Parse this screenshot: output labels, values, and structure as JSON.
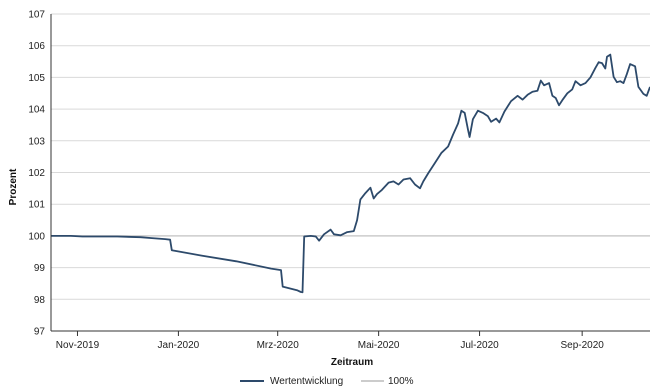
{
  "chart_data": {
    "type": "line",
    "xlabel": "Zeitraum",
    "ylabel": "Prozent",
    "ylim": [
      97,
      107
    ],
    "yticks": [
      97,
      98,
      99,
      100,
      101,
      102,
      103,
      104,
      105,
      106,
      107
    ],
    "xlim": [
      "2019-10-16",
      "2020-10-12"
    ],
    "xticks": [
      {
        "date": "2019-11-01",
        "label": "Nov-2019"
      },
      {
        "date": "2020-01-01",
        "label": "Jan-2020"
      },
      {
        "date": "2020-03-01",
        "label": "Mrz-2020"
      },
      {
        "date": "2020-05-01",
        "label": "Mai-2020"
      },
      {
        "date": "2020-07-01",
        "label": "Jul-2020"
      },
      {
        "date": "2020-09-01",
        "label": "Sep-2020"
      }
    ],
    "grid": true,
    "legend": "bottom",
    "series": [
      {
        "name": "Wertentwicklung",
        "color": "#2d4a6b",
        "points": [
          [
            "2019-10-16",
            100.0
          ],
          [
            "2019-10-28",
            100.0
          ],
          [
            "2019-11-04",
            99.98
          ],
          [
            "2019-11-25",
            99.98
          ],
          [
            "2019-12-09",
            99.96
          ],
          [
            "2019-12-16",
            99.93
          ],
          [
            "2019-12-24",
            99.9
          ],
          [
            "2019-12-27",
            99.88
          ],
          [
            "2019-12-28",
            99.55
          ],
          [
            "2020-01-15",
            99.38
          ],
          [
            "2020-02-05",
            99.2
          ],
          [
            "2020-02-26",
            98.97
          ],
          [
            "2020-03-03",
            98.92
          ],
          [
            "2020-03-04",
            98.4
          ],
          [
            "2020-03-13",
            98.28
          ],
          [
            "2020-03-15",
            98.23
          ],
          [
            "2020-03-16",
            98.22
          ],
          [
            "2020-03-17",
            99.98
          ],
          [
            "2020-03-21",
            100.0
          ],
          [
            "2020-03-24",
            99.98
          ],
          [
            "2020-03-26",
            99.85
          ],
          [
            "2020-03-29",
            100.05
          ],
          [
            "2020-04-02",
            100.2
          ],
          [
            "2020-04-04",
            100.05
          ],
          [
            "2020-04-08",
            100.02
          ],
          [
            "2020-04-12",
            100.12
          ],
          [
            "2020-04-16",
            100.15
          ],
          [
            "2020-04-18",
            100.5
          ],
          [
            "2020-04-20",
            101.15
          ],
          [
            "2020-04-23",
            101.35
          ],
          [
            "2020-04-26",
            101.52
          ],
          [
            "2020-04-28",
            101.18
          ],
          [
            "2020-04-30",
            101.32
          ],
          [
            "2020-05-03",
            101.45
          ],
          [
            "2020-05-07",
            101.68
          ],
          [
            "2020-05-10",
            101.72
          ],
          [
            "2020-05-13",
            101.62
          ],
          [
            "2020-05-16",
            101.78
          ],
          [
            "2020-05-20",
            101.82
          ],
          [
            "2020-05-23",
            101.62
          ],
          [
            "2020-05-26",
            101.5
          ],
          [
            "2020-05-28",
            101.72
          ],
          [
            "2020-05-31",
            101.98
          ],
          [
            "2020-06-04",
            102.3
          ],
          [
            "2020-06-08",
            102.62
          ],
          [
            "2020-06-12",
            102.82
          ],
          [
            "2020-06-15",
            103.2
          ],
          [
            "2020-06-18",
            103.55
          ],
          [
            "2020-06-20",
            103.95
          ],
          [
            "2020-06-22",
            103.88
          ],
          [
            "2020-06-24",
            103.35
          ],
          [
            "2020-06-25",
            103.12
          ],
          [
            "2020-06-27",
            103.68
          ],
          [
            "2020-06-30",
            103.95
          ],
          [
            "2020-07-03",
            103.88
          ],
          [
            "2020-07-06",
            103.78
          ],
          [
            "2020-07-08",
            103.6
          ],
          [
            "2020-07-11",
            103.7
          ],
          [
            "2020-07-13",
            103.58
          ],
          [
            "2020-07-16",
            103.92
          ],
          [
            "2020-07-20",
            104.25
          ],
          [
            "2020-07-24",
            104.42
          ],
          [
            "2020-07-27",
            104.3
          ],
          [
            "2020-07-30",
            104.45
          ],
          [
            "2020-08-02",
            104.55
          ],
          [
            "2020-08-05",
            104.58
          ],
          [
            "2020-08-07",
            104.9
          ],
          [
            "2020-08-09",
            104.75
          ],
          [
            "2020-08-12",
            104.82
          ],
          [
            "2020-08-14",
            104.42
          ],
          [
            "2020-08-16",
            104.35
          ],
          [
            "2020-08-18",
            104.12
          ],
          [
            "2020-08-20",
            104.28
          ],
          [
            "2020-08-23",
            104.5
          ],
          [
            "2020-08-26",
            104.62
          ],
          [
            "2020-08-28",
            104.88
          ],
          [
            "2020-08-31",
            104.75
          ],
          [
            "2020-09-03",
            104.82
          ],
          [
            "2020-09-06",
            105.0
          ],
          [
            "2020-09-09",
            105.3
          ],
          [
            "2020-09-11",
            105.48
          ],
          [
            "2020-09-13",
            105.45
          ],
          [
            "2020-09-15",
            105.28
          ],
          [
            "2020-09-16",
            105.65
          ],
          [
            "2020-09-18",
            105.72
          ],
          [
            "2020-09-20",
            105.02
          ],
          [
            "2020-09-22",
            104.85
          ],
          [
            "2020-09-24",
            104.88
          ],
          [
            "2020-09-26",
            104.82
          ],
          [
            "2020-09-28",
            105.1
          ],
          [
            "2020-09-30",
            105.42
          ],
          [
            "2020-10-03",
            105.35
          ],
          [
            "2020-10-05",
            104.7
          ],
          [
            "2020-10-08",
            104.48
          ],
          [
            "2020-10-10",
            104.42
          ],
          [
            "2020-10-12",
            104.7
          ]
        ]
      },
      {
        "name": "100%",
        "color": "#cccccc",
        "points": [
          [
            "2019-10-16",
            100.0
          ],
          [
            "2020-10-12",
            100.0
          ]
        ]
      }
    ]
  }
}
